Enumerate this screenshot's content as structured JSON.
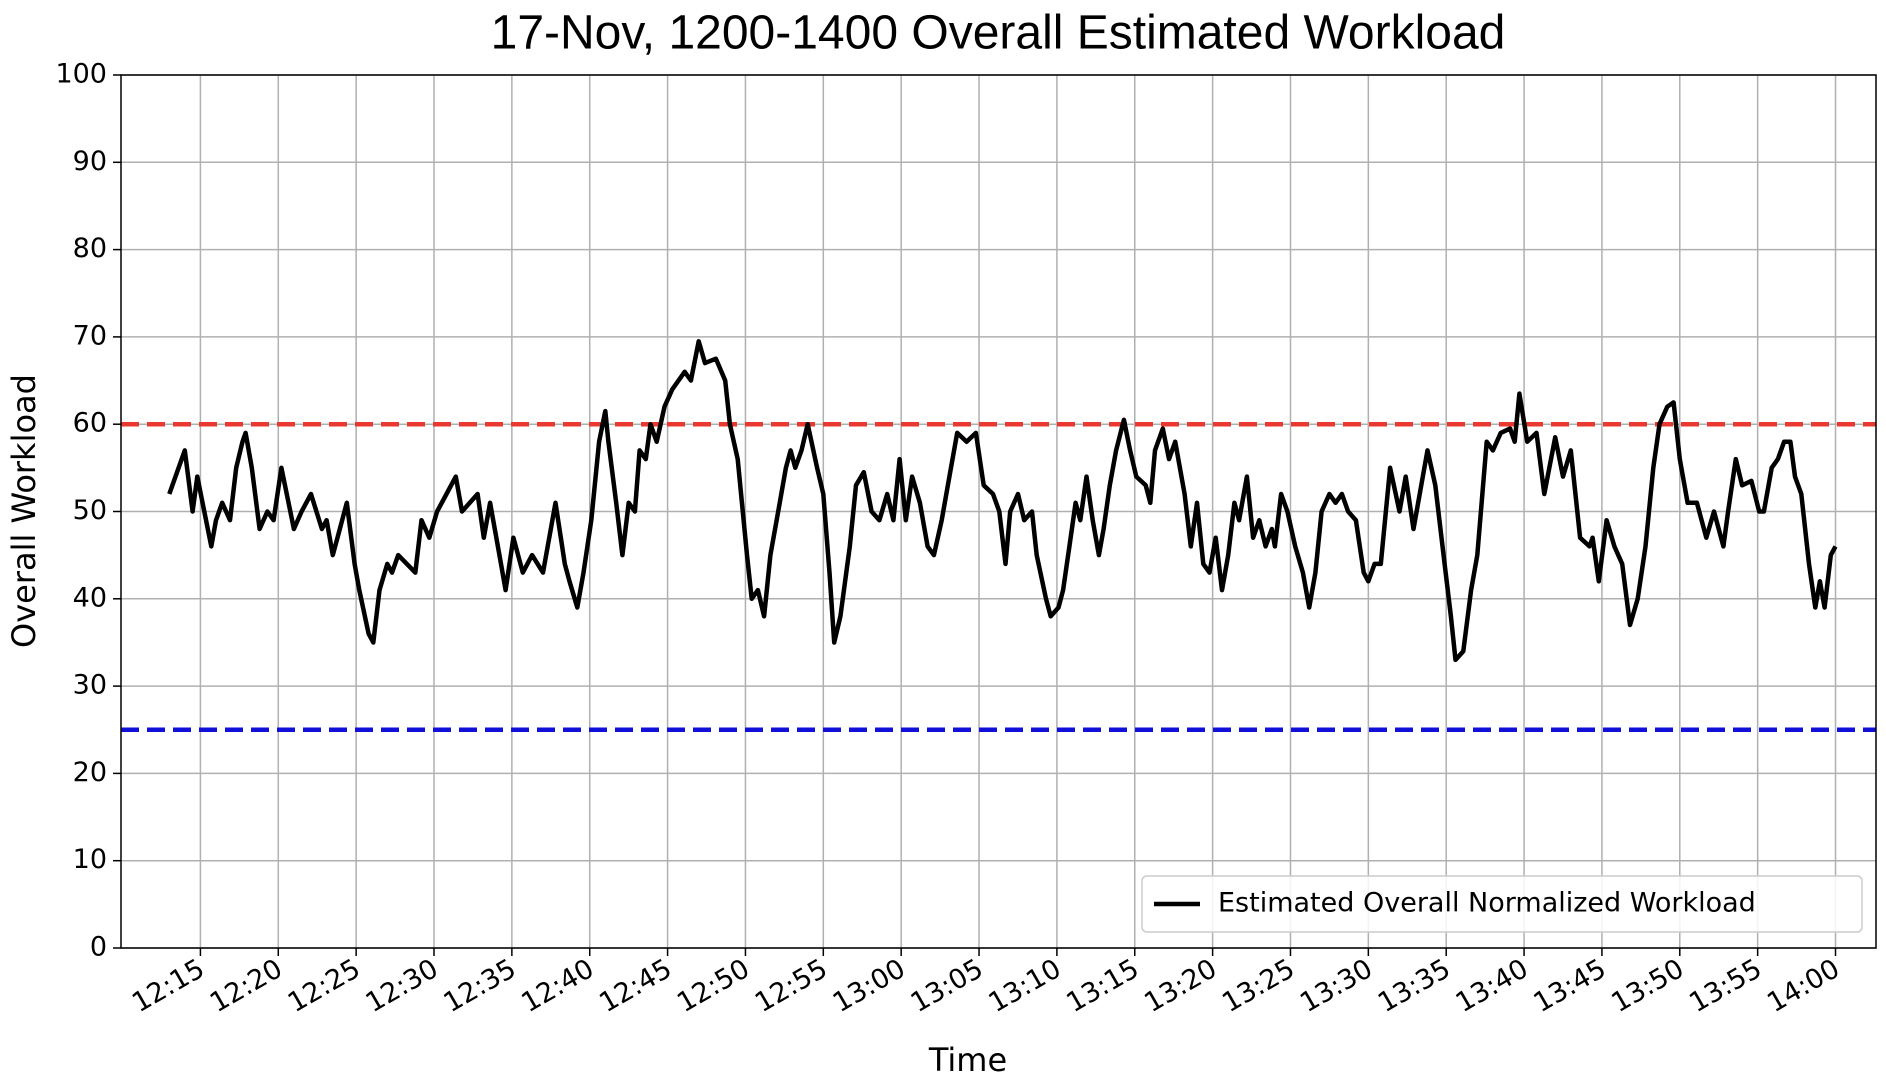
{
  "chart_data": {
    "type": "line",
    "title": "17-Nov, 1200-1400 Overall Estimated Workload",
    "x_label": "Time",
    "y_label": "Overall Workload",
    "xlim": [
      729.9,
      842.6
    ],
    "ylim": [
      0,
      100
    ],
    "xticks": [
      {
        "value": 735,
        "label": "12:15"
      },
      {
        "value": 740,
        "label": "12:20"
      },
      {
        "value": 745,
        "label": "12:25"
      },
      {
        "value": 750,
        "label": "12:30"
      },
      {
        "value": 755,
        "label": "12:35"
      },
      {
        "value": 760,
        "label": "12:40"
      },
      {
        "value": 765,
        "label": "12:45"
      },
      {
        "value": 770,
        "label": "12:50"
      },
      {
        "value": 775,
        "label": "12:55"
      },
      {
        "value": 780,
        "label": "13:00"
      },
      {
        "value": 785,
        "label": "13:05"
      },
      {
        "value": 790,
        "label": "13:10"
      },
      {
        "value": 795,
        "label": "13:15"
      },
      {
        "value": 800,
        "label": "13:20"
      },
      {
        "value": 805,
        "label": "13:25"
      },
      {
        "value": 810,
        "label": "13:30"
      },
      {
        "value": 815,
        "label": "13:35"
      },
      {
        "value": 820,
        "label": "13:40"
      },
      {
        "value": 825,
        "label": "13:45"
      },
      {
        "value": 830,
        "label": "13:50"
      },
      {
        "value": 835,
        "label": "13:55"
      },
      {
        "value": 840,
        "label": "14:00"
      }
    ],
    "yticks": [
      0,
      10,
      20,
      30,
      40,
      50,
      60,
      70,
      80,
      90,
      100
    ],
    "grid": true,
    "legend": "lower right",
    "hlines": [
      {
        "value": 60,
        "color": "#e8382f"
      },
      {
        "value": 25,
        "color": "#1010d8"
      }
    ],
    "x": [
      733.0,
      734.0,
      734.5,
      734.8,
      735.7,
      736.0,
      736.4,
      736.9,
      737.3,
      737.7,
      737.9,
      738.3,
      738.8,
      739.3,
      739.7,
      740.2,
      741.0,
      741.5,
      742.1,
      742.8,
      743.1,
      743.5,
      743.8,
      744.4,
      744.9,
      745.2,
      745.8,
      746.1,
      746.5,
      747.0,
      747.3,
      747.7,
      748.8,
      749.2,
      749.7,
      750.2,
      750.8,
      751.4,
      751.8,
      752.8,
      753.2,
      753.6,
      754.3,
      754.6,
      755.1,
      755.7,
      756.3,
      757.0,
      757.8,
      758.4,
      758.7,
      759.2,
      759.6,
      760.1,
      760.6,
      761.0,
      761.2,
      761.7,
      762.1,
      762.5,
      762.9,
      763.2,
      763.6,
      763.9,
      764.3,
      764.8,
      765.3,
      766.1,
      766.5,
      767.0,
      767.4,
      768.1,
      768.7,
      769.0,
      769.5,
      770.1,
      770.4,
      770.8,
      771.2,
      771.6,
      772.1,
      772.6,
      772.9,
      773.2,
      773.6,
      774.0,
      774.6,
      775.0,
      775.4,
      775.7,
      776.1,
      776.7,
      777.1,
      777.6,
      778.1,
      778.6,
      779.1,
      779.5,
      779.9,
      780.3,
      780.7,
      781.2,
      781.7,
      782.1,
      782.6,
      783.1,
      783.6,
      784.2,
      784.8,
      785.3,
      785.9,
      786.3,
      786.7,
      787.0,
      787.5,
      787.9,
      788.4,
      788.7,
      789.3,
      789.6,
      790.1,
      790.4,
      790.8,
      791.2,
      791.5,
      791.9,
      792.3,
      792.7,
      793.0,
      793.4,
      793.8,
      794.3,
      794.7,
      795.1,
      795.7,
      796.0,
      796.3,
      796.8,
      797.2,
      797.6,
      798.2,
      798.6,
      799.0,
      799.4,
      799.8,
      800.2,
      800.6,
      801.0,
      801.4,
      801.7,
      802.2,
      802.6,
      803.0,
      803.4,
      803.8,
      804.0,
      804.4,
      804.8,
      805.3,
      805.8,
      806.2,
      806.6,
      807.0,
      807.5,
      807.9,
      808.3,
      808.7,
      809.2,
      809.7,
      810.0,
      810.4,
      810.8,
      811.4,
      812.0,
      812.4,
      812.9,
      813.5,
      813.8,
      814.3,
      814.9,
      815.3,
      815.6,
      816.1,
      816.6,
      817.0,
      817.6,
      818.0,
      818.5,
      819.1,
      819.4,
      819.7,
      820.2,
      820.8,
      821.3,
      822.0,
      822.5,
      823.0,
      823.6,
      824.2,
      824.4,
      824.8,
      825.3,
      825.8,
      826.3,
      826.8,
      827.3,
      827.8,
      828.3,
      828.7,
      829.2,
      829.6,
      830.0,
      830.5,
      831.1,
      831.7,
      832.2,
      832.8,
      833.1,
      833.6,
      834.0,
      834.6,
      835.1,
      835.4,
      835.9,
      836.3,
      836.7,
      837.1,
      837.4,
      837.8,
      838.3,
      838.7,
      839.0,
      839.3,
      839.7,
      840.0
    ],
    "series": [
      {
        "name": "Estimated Overall Normalized Workload",
        "color": "#000000",
        "values": [
          52,
          57,
          50,
          54,
          46,
          49,
          51,
          49,
          55,
          58,
          59,
          55,
          48,
          50,
          49,
          55,
          48,
          50,
          52,
          48,
          49,
          45,
          47,
          51,
          44,
          41,
          36,
          35,
          41,
          44,
          43,
          45,
          43,
          49,
          47,
          50,
          52,
          54,
          50,
          52,
          47,
          51,
          44,
          41,
          47,
          43,
          45,
          43,
          51,
          44,
          42,
          39,
          43,
          49,
          58,
          61.5,
          58,
          51,
          45,
          51,
          50,
          57,
          56,
          60,
          58,
          62,
          64,
          66,
          65,
          69.5,
          67,
          67.5,
          65,
          60,
          56,
          45,
          40,
          41,
          38,
          45,
          50,
          55,
          57,
          55,
          57,
          60,
          55,
          52,
          43,
          35,
          38,
          46,
          53,
          54.5,
          50,
          49,
          52,
          49,
          56,
          49,
          54,
          51,
          46,
          45,
          49,
          54,
          59,
          58,
          59,
          53,
          52,
          50,
          44,
          50,
          52,
          49,
          50,
          45,
          40,
          38,
          39,
          41,
          46,
          51,
          49,
          54,
          49,
          45,
          48,
          53,
          57,
          60.5,
          57,
          54,
          53,
          51,
          57,
          59.5,
          56,
          58,
          52,
          46,
          51,
          44,
          43,
          47,
          41,
          45,
          51,
          49,
          54,
          47,
          49,
          46,
          48,
          46,
          52,
          50,
          46,
          43,
          39,
          43,
          50,
          52,
          51,
          52,
          50,
          49,
          43,
          42,
          44,
          44,
          55,
          50,
          54,
          48,
          54,
          57,
          53,
          44,
          38,
          33,
          34,
          41,
          45,
          58,
          57,
          59,
          59.5,
          58,
          63.5,
          58,
          59,
          52,
          58.5,
          54,
          57,
          47,
          46,
          47,
          42,
          49,
          46,
          44,
          37,
          40,
          46,
          55,
          60,
          62,
          62.5,
          56,
          51,
          51,
          47,
          50,
          46,
          50,
          56,
          53,
          53.5,
          50,
          50,
          55,
          56,
          58,
          58,
          54,
          52,
          44,
          39,
          42,
          39,
          45,
          46
        ]
      }
    ]
  }
}
